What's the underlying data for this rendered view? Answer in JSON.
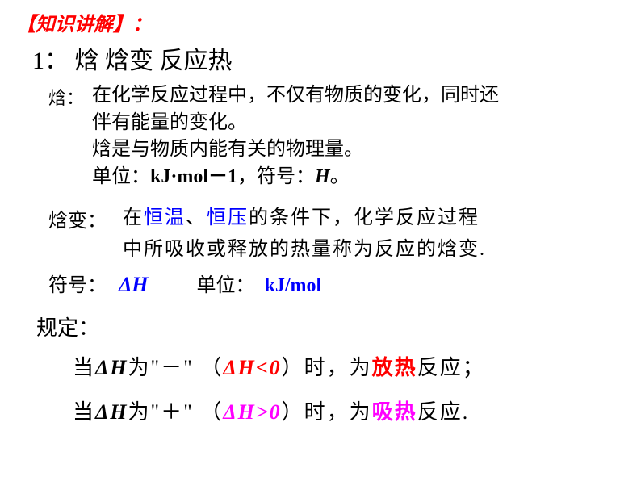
{
  "header": "【知识讲解】：",
  "title": "1： 焓 焓变 反应热",
  "enthalpy": {
    "label": "焓：",
    "line1": "在化学反应过程中，不仅有物质的变化，同时还",
    "line2": "伴有能量的变化。",
    "line3": "焓是与物质内能有关的物理量。",
    "line4_prefix": "单位：",
    "line4_unit": "kJ·mol－1",
    "line4_mid": "，符号：",
    "line4_symbol": "H",
    "line4_suffix": "。"
  },
  "enthalpy_change": {
    "label": "焓变：",
    "line1_pre": "在",
    "line1_blue1": "恒温",
    "line1_mid": "、",
    "line1_blue2": "恒压",
    "line1_post": "的条件下，化学反应过程",
    "line2": "中所吸收或释放的热量称为反应的焓变."
  },
  "symbol": {
    "label": "符号：",
    "value": "ΔH",
    "unit_label": "单位：",
    "unit_value": "kJ/mol"
  },
  "rules": {
    "label": "规定：",
    "rule1": {
      "pre": "当",
      "dh": "ΔH",
      "mid1": "为\"",
      "sign": "－",
      "mid2": "\" （",
      "cond": "ΔH<0",
      "mid3": "）时，为",
      "type": "放热",
      "post": "反应；"
    },
    "rule2": {
      "pre": "当",
      "dh": "ΔH",
      "mid1": "为\"",
      "sign": "＋",
      "mid2": "\" （",
      "cond": "ΔH>0",
      "mid3": "）时，为",
      "type": "吸热",
      "post": "反应."
    }
  }
}
